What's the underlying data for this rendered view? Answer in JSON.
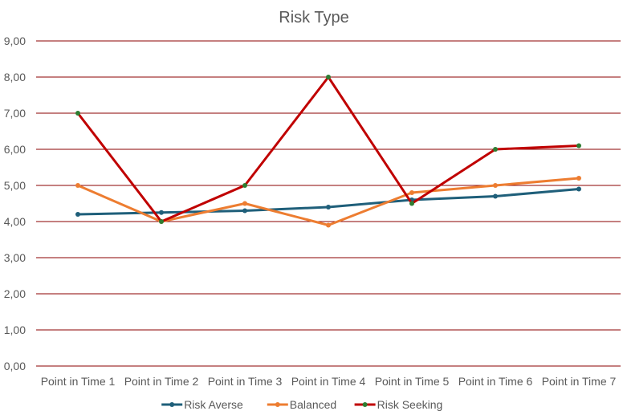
{
  "chart_data": {
    "type": "line",
    "title": "Risk Type",
    "xlabel": "",
    "ylabel": "",
    "categories": [
      "Point in Time 1",
      "Point in Time 2",
      "Point in Time 3",
      "Point in Time 4",
      "Point in Time 5",
      "Point in Time 6",
      "Point in Time 7"
    ],
    "yticks": [
      "0,00",
      "1,00",
      "2,00",
      "3,00",
      "4,00",
      "5,00",
      "6,00",
      "7,00",
      "8,00",
      "9,00"
    ],
    "ylim": [
      0,
      9
    ],
    "grid": true,
    "legend_position": "bottom",
    "gridline_color": "#8B0000",
    "series": [
      {
        "name": "Risk Averse",
        "values": [
          4.2,
          4.25,
          4.3,
          4.4,
          4.6,
          4.7,
          4.9
        ],
        "color": "#1F5F7A",
        "marker_color": "#1F5F7A"
      },
      {
        "name": "Balanced",
        "values": [
          5.0,
          4.0,
          4.5,
          3.9,
          4.8,
          5.0,
          5.2
        ],
        "color": "#ED7D31",
        "marker_color": "#ED7D31"
      },
      {
        "name": "Risk Seeking",
        "values": [
          7.0,
          4.0,
          5.0,
          8.0,
          4.5,
          6.0,
          6.1
        ],
        "color": "#C00000",
        "marker_color": "#2E7D32"
      }
    ]
  }
}
